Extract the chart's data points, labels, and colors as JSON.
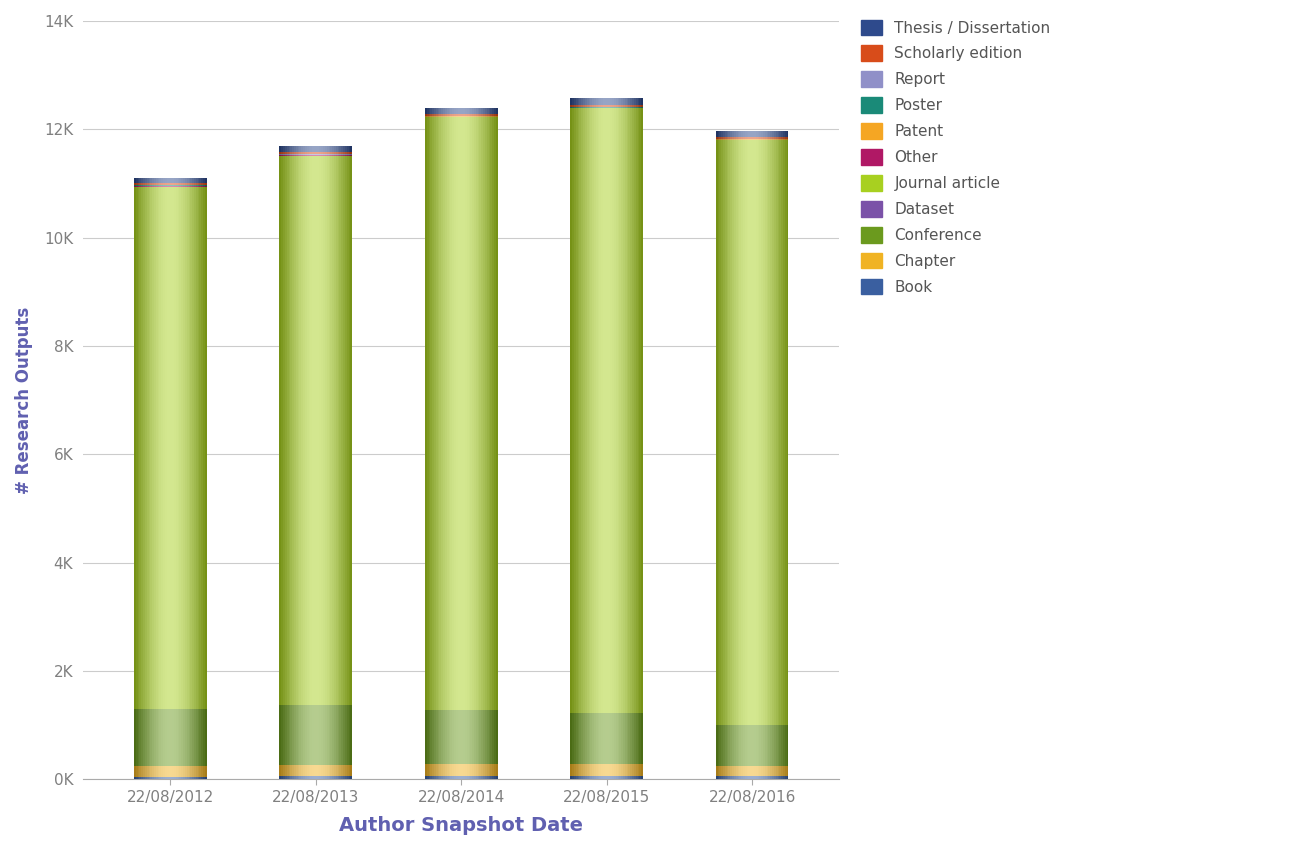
{
  "categories": [
    "22/08/2012",
    "22/08/2013",
    "22/08/2014",
    "22/08/2015",
    "22/08/2016"
  ],
  "series": {
    "Book": [
      50,
      55,
      60,
      60,
      55
    ],
    "Chapter": [
      200,
      220,
      220,
      220,
      200
    ],
    "Conference": [
      1050,
      1100,
      1000,
      950,
      750
    ],
    "Dataset": [
      5,
      5,
      5,
      5,
      5
    ],
    "Journal article": [
      9640,
      10130,
      10940,
      11150,
      10790
    ],
    "Other": [
      10,
      10,
      10,
      10,
      10
    ],
    "Patent": [
      5,
      5,
      5,
      5,
      5
    ],
    "Poster": [
      5,
      5,
      5,
      5,
      5
    ],
    "Report": [
      10,
      10,
      10,
      10,
      10
    ],
    "Scholarly edition": [
      35,
      35,
      35,
      35,
      35
    ],
    "Thesis / Dissertation": [
      90,
      120,
      110,
      120,
      100
    ]
  },
  "colors": {
    "Book": "#3A5FA0",
    "Chapter": "#F0B323",
    "Conference": "#6B9A1E",
    "Dataset": "#7B52A8",
    "Journal article": "#A8D020",
    "Other": "#B01865",
    "Patent": "#F5A623",
    "Poster": "#1A8A78",
    "Report": "#9090C8",
    "Scholarly edition": "#D84C1A",
    "Thesis / Dissertation": "#2E4A8C"
  },
  "ylabel": "# Research Outputs",
  "xlabel": "Author Snapshot Date",
  "ylim": [
    0,
    14000
  ],
  "yticks": [
    0,
    2000,
    4000,
    6000,
    8000,
    10000,
    12000,
    14000
  ],
  "ytick_labels": [
    "0K",
    "2K",
    "4K",
    "6K",
    "8K",
    "10K",
    "12K",
    "14K"
  ],
  "background_color": "#FFFFFF",
  "plot_bg_color": "#FFFFFF",
  "grid_color": "#CCCCCC",
  "bar_width": 0.5,
  "legend_order": [
    "Thesis / Dissertation",
    "Scholarly edition",
    "Report",
    "Poster",
    "Patent",
    "Other",
    "Journal article",
    "Dataset",
    "Conference",
    "Chapter",
    "Book"
  ],
  "label_fontsize": 12,
  "tick_fontsize": 11,
  "axis_label_color": "#6060B0",
  "tick_color": "#808080"
}
